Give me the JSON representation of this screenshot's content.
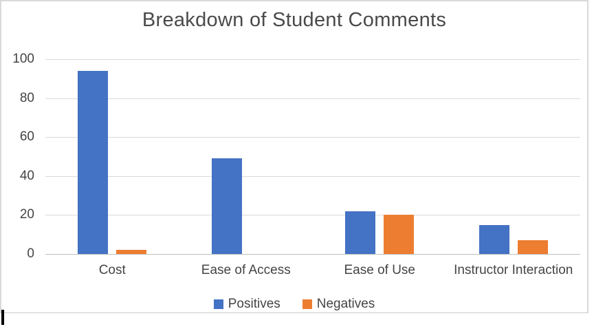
{
  "chart_data": {
    "type": "bar",
    "title": "Breakdown of Student Comments",
    "categories": [
      "Cost",
      "Ease of Access",
      "Ease of Use",
      "Instructor Interaction"
    ],
    "series": [
      {
        "name": "Positives",
        "color": "#4472C4",
        "values": [
          94,
          49,
          22,
          15
        ]
      },
      {
        "name": "Negatives",
        "color": "#ED7D31",
        "values": [
          2,
          0,
          20,
          7
        ]
      }
    ],
    "xlabel": "",
    "ylabel": "",
    "ylim": [
      0,
      100
    ],
    "yticks": [
      0,
      20,
      40,
      60,
      80,
      100
    ],
    "grid": true,
    "legend_position": "bottom"
  },
  "colors": {
    "positive": "#4472C4",
    "negative": "#ED7D31",
    "gridline": "#D9D9D9",
    "axis_text": "#444444",
    "frame_border": "#D9D9D9"
  }
}
